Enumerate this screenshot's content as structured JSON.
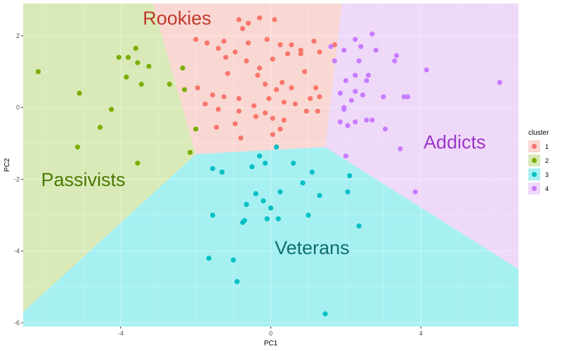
{
  "chart_data": {
    "type": "scatter",
    "xlabel": "PC1",
    "ylabel": "PC2",
    "xlim": [
      -6.6,
      6.6
    ],
    "ylim": [
      -6.1,
      2.9
    ],
    "x_ticks": [
      -4,
      0,
      4
    ],
    "x_tick_labels": [
      "-4",
      "0",
      "4"
    ],
    "y_ticks": [
      2,
      0,
      -2,
      -4,
      -6
    ],
    "y_tick_labels": [
      "2",
      "0",
      "-2",
      "-4",
      "-6"
    ],
    "grid": true,
    "legend": {
      "title": "cluster",
      "placement": "right",
      "entries": [
        "1",
        "2",
        "3",
        "4"
      ]
    },
    "colors": {
      "1": "#F8766D",
      "2": "#7CAE00",
      "3": "#00BFC4",
      "4": "#C77CFF"
    },
    "region_colors": {
      "1": "#F9D8D3",
      "2": "#D9EAB8",
      "3": "#A6F0F2",
      "4": "#EFD9F9"
    },
    "regions": [
      {
        "cluster": "1",
        "polygon": [
          [
            -3.15,
            2.9
          ],
          [
            1.9,
            2.9
          ],
          [
            1.45,
            -1.1
          ],
          [
            -2.0,
            -1.3
          ]
        ]
      },
      {
        "cluster": "2",
        "polygon": [
          [
            -6.6,
            2.9
          ],
          [
            -3.15,
            2.9
          ],
          [
            -2.0,
            -1.3
          ],
          [
            -6.6,
            -5.7
          ]
        ]
      },
      {
        "cluster": "3",
        "polygon": [
          [
            -6.6,
            -5.7
          ],
          [
            -2.0,
            -1.3
          ],
          [
            1.45,
            -1.1
          ],
          [
            6.6,
            -4.5
          ],
          [
            6.6,
            -6.1
          ],
          [
            -6.6,
            -6.1
          ]
        ]
      },
      {
        "cluster": "4",
        "polygon": [
          [
            1.9,
            2.9
          ],
          [
            6.6,
            2.9
          ],
          [
            6.6,
            -4.5
          ],
          [
            1.45,
            -1.1
          ]
        ]
      }
    ],
    "region_labels": [
      {
        "text": "Rookies",
        "cluster": "1",
        "x": -2.5,
        "y": 2.45,
        "color": "#C0392B"
      },
      {
        "text": "Passivists",
        "cluster": "2",
        "x": -5.0,
        "y": -2.05,
        "color": "#4A7A00"
      },
      {
        "text": "Veterans",
        "cluster": "3",
        "x": 1.1,
        "y": -3.95,
        "color": "#0E6E72"
      },
      {
        "text": "Addicts",
        "cluster": "4",
        "x": 4.9,
        "y": -1.0,
        "color": "#9C36C9"
      }
    ],
    "series": [
      {
        "name": "1",
        "points": [
          [
            -2.0,
            1.9
          ],
          [
            -1.7,
            1.8
          ],
          [
            -1.25,
            1.85
          ],
          [
            -0.85,
            2.45
          ],
          [
            -0.6,
            2.35
          ],
          [
            -0.3,
            2.5
          ],
          [
            0.1,
            2.45
          ],
          [
            -0.75,
            2.2
          ],
          [
            -0.1,
            1.9
          ],
          [
            -0.6,
            1.8
          ],
          [
            -0.95,
            1.55
          ],
          [
            -1.4,
            1.65
          ],
          [
            -1.2,
            1.4
          ],
          [
            -0.65,
            1.3
          ],
          [
            -0.3,
            1.1
          ],
          [
            0.05,
            1.35
          ],
          [
            0.25,
            1.75
          ],
          [
            0.55,
            1.75
          ],
          [
            0.45,
            1.5
          ],
          [
            0.8,
            1.5
          ],
          [
            1.3,
            1.55
          ],
          [
            1.15,
            1.85
          ],
          [
            1.7,
            1.75
          ],
          [
            -1.15,
            0.95
          ],
          [
            -0.35,
            0.9
          ],
          [
            -0.15,
            0.65
          ],
          [
            0.3,
            0.7
          ],
          [
            0.15,
            0.5
          ],
          [
            0.55,
            0.55
          ],
          [
            0.9,
            1.0
          ],
          [
            1.2,
            0.55
          ],
          [
            1.05,
            0.25
          ],
          [
            1.3,
            0.3
          ],
          [
            -1.95,
            0.55
          ],
          [
            -1.55,
            0.35
          ],
          [
            -1.25,
            0.3
          ],
          [
            -0.85,
            0.25
          ],
          [
            -0.45,
            0.05
          ],
          [
            -0.05,
            0.25
          ],
          [
            0.35,
            0.15
          ],
          [
            0.65,
            0.1
          ],
          [
            0.95,
            -0.1
          ],
          [
            1.25,
            -0.1
          ],
          [
            -1.75,
            0.1
          ],
          [
            -1.4,
            -0.05
          ],
          [
            -0.85,
            -0.1
          ],
          [
            -0.15,
            -0.15
          ],
          [
            0.05,
            -0.3
          ],
          [
            -0.4,
            -0.25
          ],
          [
            0.35,
            -0.35
          ],
          [
            -0.95,
            -0.45
          ],
          [
            -1.45,
            -0.55
          ],
          [
            -0.8,
            -0.85
          ],
          [
            0.05,
            -0.75
          ],
          [
            0.25,
            -0.6
          ],
          [
            0.8,
            1.6
          ]
        ]
      },
      {
        "name": "2",
        "points": [
          [
            -6.2,
            1.0
          ],
          [
            -5.1,
            0.4
          ],
          [
            -4.05,
            1.4
          ],
          [
            -3.8,
            1.4
          ],
          [
            -3.6,
            1.65
          ],
          [
            -3.55,
            1.25
          ],
          [
            -3.25,
            1.15
          ],
          [
            -3.85,
            0.85
          ],
          [
            -3.45,
            0.65
          ],
          [
            -2.7,
            0.65
          ],
          [
            -2.3,
            0.5
          ],
          [
            -2.35,
            1.1
          ],
          [
            -4.25,
            -0.05
          ],
          [
            -4.55,
            -0.55
          ],
          [
            -5.15,
            -1.1
          ],
          [
            -2.0,
            -0.6
          ],
          [
            -2.15,
            -1.25
          ],
          [
            -3.55,
            -1.55
          ]
        ]
      },
      {
        "name": "3",
        "points": [
          [
            0.15,
            -1.1
          ],
          [
            -0.3,
            -1.35
          ],
          [
            -0.5,
            -1.65
          ],
          [
            -0.15,
            -1.55
          ],
          [
            -1.55,
            -1.7
          ],
          [
            -1.3,
            -1.8
          ],
          [
            0.6,
            -1.55
          ],
          [
            1.1,
            -1.8
          ],
          [
            0.85,
            -2.1
          ],
          [
            1.3,
            -2.45
          ],
          [
            2.05,
            -2.35
          ],
          [
            2.1,
            -1.9
          ],
          [
            -0.4,
            -2.4
          ],
          [
            0.25,
            -2.35
          ],
          [
            -0.2,
            -2.6
          ],
          [
            -0.65,
            -2.7
          ],
          [
            0.0,
            -2.8
          ],
          [
            -1.55,
            -3.0
          ],
          [
            -0.75,
            -3.2
          ],
          [
            -0.1,
            -3.1
          ],
          [
            0.2,
            -3.1
          ],
          [
            1.0,
            -3.0
          ],
          [
            2.35,
            -3.3
          ],
          [
            -1.65,
            -4.2
          ],
          [
            -1.0,
            -4.25
          ],
          [
            -0.9,
            -4.85
          ],
          [
            1.45,
            -5.75
          ],
          [
            -0.7,
            -3.15
          ]
        ]
      },
      {
        "name": "4",
        "points": [
          [
            2.7,
            2.05
          ],
          [
            2.25,
            1.9
          ],
          [
            1.95,
            1.6
          ],
          [
            1.6,
            1.7
          ],
          [
            2.4,
            1.7
          ],
          [
            2.8,
            1.6
          ],
          [
            1.7,
            1.3
          ],
          [
            2.35,
            1.3
          ],
          [
            2.6,
            0.9
          ],
          [
            2.25,
            0.9
          ],
          [
            3.35,
            1.45
          ],
          [
            3.3,
            1.3
          ],
          [
            4.15,
            1.05
          ],
          [
            2.55,
            0.75
          ],
          [
            2.0,
            0.75
          ],
          [
            2.25,
            0.45
          ],
          [
            1.85,
            0.4
          ],
          [
            2.45,
            0.35
          ],
          [
            2.15,
            0.2
          ],
          [
            3.0,
            0.3
          ],
          [
            3.65,
            0.3
          ],
          [
            3.55,
            0.3
          ],
          [
            6.1,
            0.7
          ],
          [
            2.55,
            -0.35
          ],
          [
            2.25,
            -0.4
          ],
          [
            2.05,
            -0.5
          ],
          [
            1.95,
            -0.05
          ],
          [
            3.05,
            -0.6
          ],
          [
            3.45,
            -1.15
          ],
          [
            2.0,
            -1.35
          ],
          [
            3.85,
            -2.35
          ],
          [
            2.7,
            -0.35
          ],
          [
            1.85,
            -0.4
          ],
          [
            1.95,
            0.0
          ]
        ]
      }
    ]
  }
}
